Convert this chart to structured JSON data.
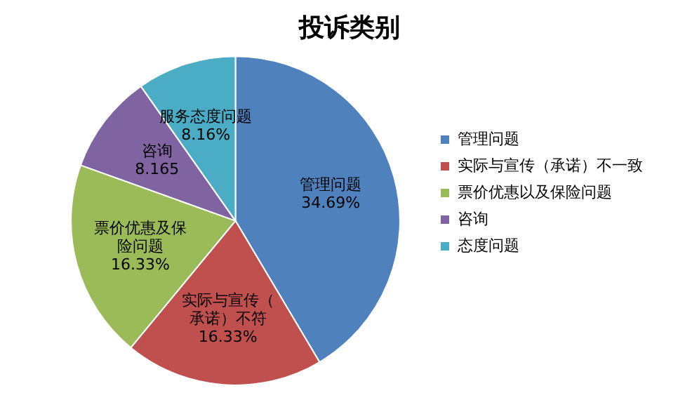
{
  "chart_data": {
    "type": "pie",
    "title": "投诉类别",
    "categories": [
      "管理问题",
      "实际与宣传（承诺）不一致",
      "票价优惠以及保险问题",
      "咨询",
      "态度问题"
    ],
    "values": [
      34.69,
      16.33,
      16.33,
      8.165,
      8.16
    ],
    "value_labels": [
      "34.69%",
      "16.33%",
      "16.33%",
      "8.165",
      "8.16%"
    ],
    "colors": [
      "#4f81bd",
      "#c0504d",
      "#9bbb59",
      "#8064a2",
      "#4bacc6"
    ],
    "annotations": [
      "管理问题",
      "实际与宣传（承诺）不符",
      "票价优惠及保险问题",
      "咨询",
      "服务态度问题"
    ],
    "legend": "right"
  }
}
